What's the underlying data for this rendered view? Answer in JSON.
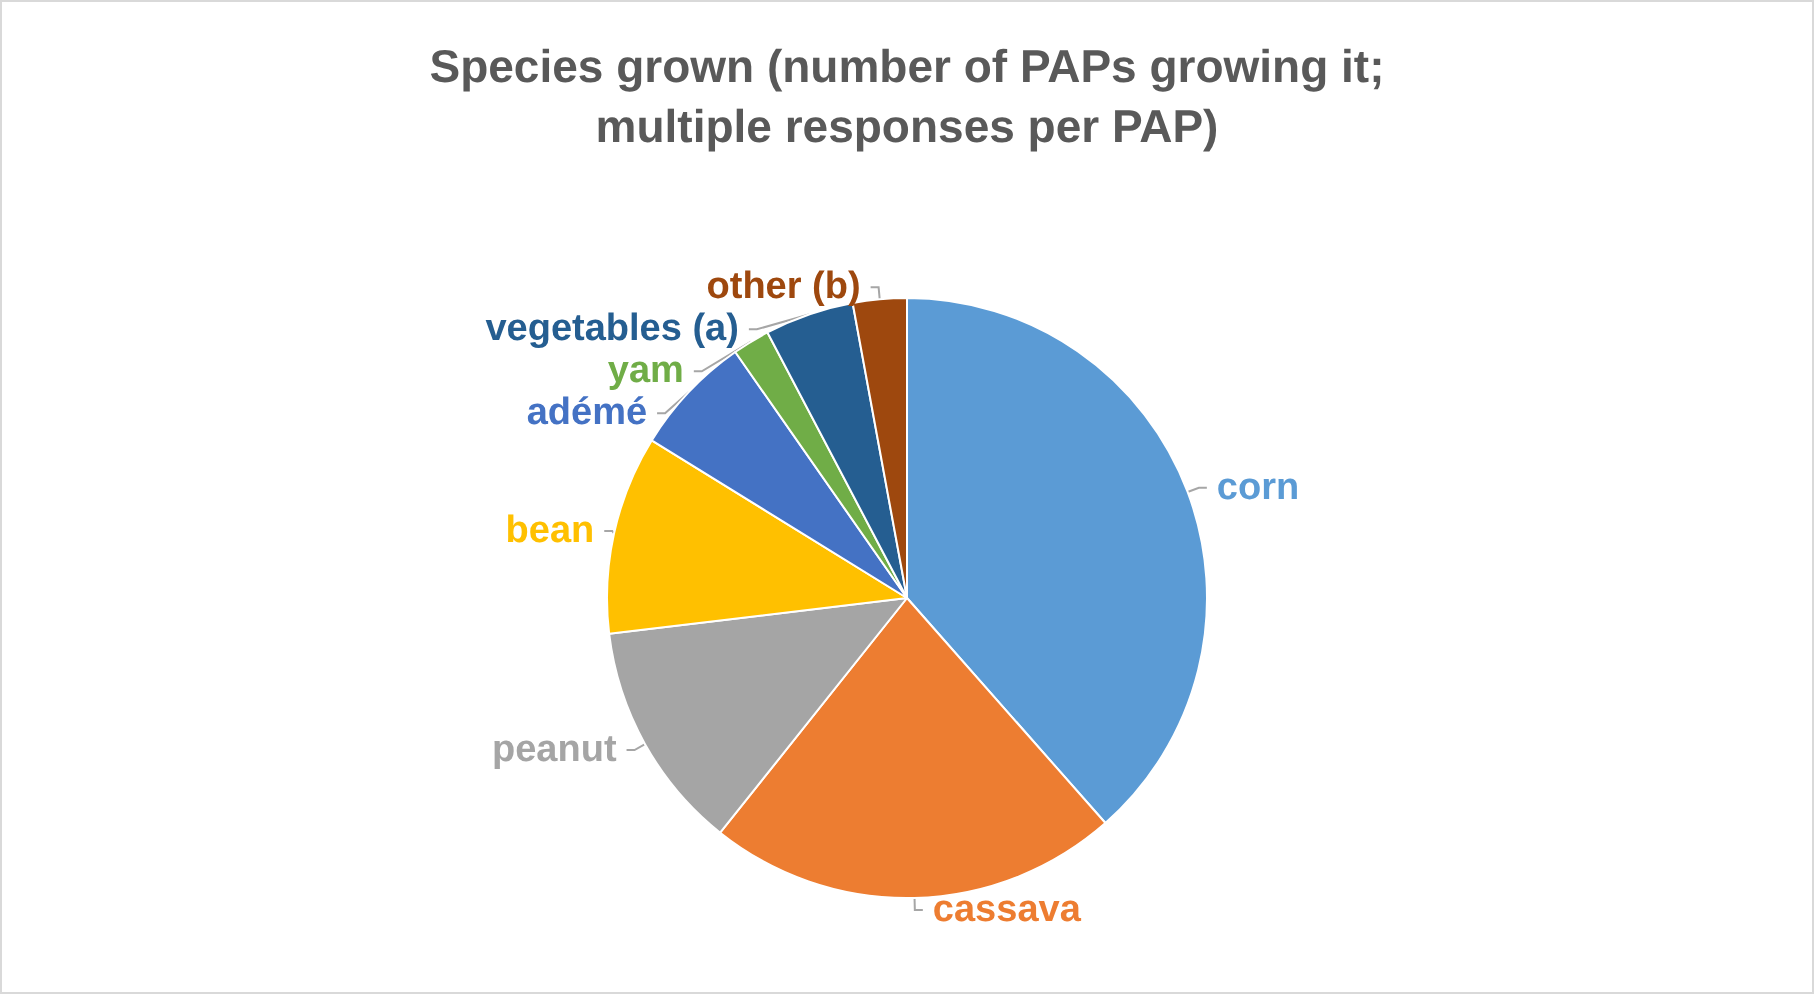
{
  "chart_data": {
    "type": "pie",
    "title": "Species grown (number of PAPs growing it;\nmultiple responses per PAP)",
    "categories": [
      "corn",
      "cassava",
      "peanut",
      "bean",
      "adémé",
      "yam",
      "vegetables (a)",
      "other (b)"
    ],
    "values": [
      38.5,
      22.2,
      12.4,
      10.7,
      6.5,
      2.0,
      4.8,
      2.9
    ],
    "colors": [
      "#5b9bd5",
      "#ed7d31",
      "#a5a5a5",
      "#ffc000",
      "#4472c4",
      "#70ad47",
      "#255e91",
      "#9e480e"
    ],
    "legend": false
  }
}
